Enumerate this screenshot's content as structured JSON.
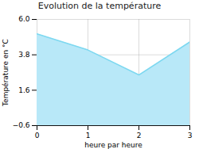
{
  "chart_data": {
    "type": "area",
    "title": "Evolution de la température",
    "xlabel": "heure par heure",
    "ylabel": "Température en °C",
    "x": [
      0,
      1,
      2,
      3
    ],
    "values": [
      5.1,
      4.1,
      2.55,
      4.6
    ],
    "colors": [
      "#b8e8f8",
      "#7dd8f0"
    ],
    "xlim": [
      0,
      3
    ],
    "xticks": [
      0,
      1,
      2,
      3
    ],
    "ylim": [
      -0.6,
      6.0
    ],
    "yticks": [
      {
        "value": -0.6,
        "label": "−0.6"
      },
      {
        "value": 1.6,
        "label": "1.6"
      },
      {
        "value": 3.8,
        "label": "3.8"
      },
      {
        "value": 6.0,
        "label": "6.0"
      }
    ],
    "grid": true
  }
}
